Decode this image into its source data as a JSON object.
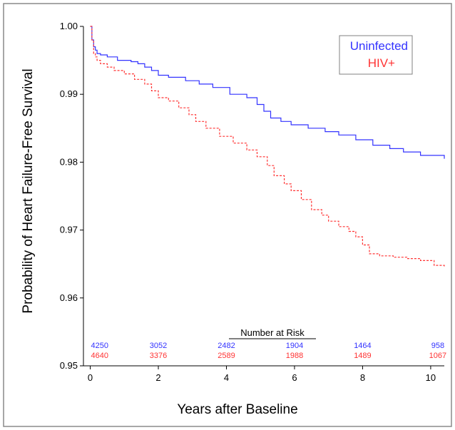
{
  "chart_data": {
    "type": "line",
    "xlabel": "Years after Baseline",
    "ylabel": "Probability of Heart Failure-Free Survival",
    "xlim": [
      -0.2,
      10.4
    ],
    "ylim": [
      0.95,
      1.0
    ],
    "x_ticks": [
      0,
      2,
      4,
      6,
      8,
      10
    ],
    "x_tick_labels": [
      "0",
      "2",
      "4",
      "6",
      "8",
      "10"
    ],
    "y_ticks": [
      0.95,
      0.96,
      0.97,
      0.98,
      0.99,
      1.0
    ],
    "y_tick_labels": [
      "0.95",
      "0.96",
      "0.97",
      "0.98",
      "0.99",
      "1.00"
    ],
    "legend_position": "top-right",
    "series": [
      {
        "name": "Uninfected",
        "color": "#3333ff",
        "dash": "solid",
        "x": [
          0,
          0.05,
          0.1,
          0.15,
          0.2,
          0.3,
          0.5,
          0.8,
          1.2,
          1.4,
          1.6,
          1.8,
          2.0,
          2.3,
          2.8,
          3.2,
          3.6,
          4.1,
          4.6,
          4.9,
          5.1,
          5.3,
          5.6,
          5.9,
          6.1,
          6.4,
          6.9,
          7.3,
          7.8,
          8.3,
          8.8,
          9.2,
          9.7,
          10.4
        ],
        "y": [
          1.0,
          0.998,
          0.997,
          0.9965,
          0.996,
          0.9958,
          0.9955,
          0.995,
          0.9948,
          0.9945,
          0.994,
          0.9935,
          0.9928,
          0.9925,
          0.992,
          0.9915,
          0.991,
          0.99,
          0.9895,
          0.9885,
          0.9875,
          0.9865,
          0.986,
          0.9855,
          0.9855,
          0.985,
          0.9845,
          0.984,
          0.9833,
          0.9825,
          0.982,
          0.9815,
          0.981,
          0.9805
        ]
      },
      {
        "name": "HIV+",
        "color": "#ff3333",
        "dash": "dashed",
        "x": [
          0,
          0.05,
          0.1,
          0.15,
          0.2,
          0.3,
          0.5,
          0.7,
          1.0,
          1.3,
          1.6,
          1.8,
          2.0,
          2.3,
          2.6,
          2.9,
          3.1,
          3.4,
          3.8,
          4.2,
          4.6,
          4.9,
          5.2,
          5.4,
          5.7,
          5.9,
          6.2,
          6.5,
          6.8,
          7.0,
          7.3,
          7.6,
          7.8,
          8.0,
          8.2,
          8.5,
          8.9,
          9.3,
          9.7,
          10.1,
          10.4
        ],
        "y": [
          1.0,
          0.998,
          0.996,
          0.9955,
          0.995,
          0.9945,
          0.994,
          0.9935,
          0.993,
          0.9922,
          0.9915,
          0.9905,
          0.9895,
          0.989,
          0.988,
          0.987,
          0.986,
          0.985,
          0.9838,
          0.9828,
          0.9818,
          0.9808,
          0.9795,
          0.978,
          0.9768,
          0.9758,
          0.9745,
          0.973,
          0.9722,
          0.9713,
          0.9705,
          0.9698,
          0.969,
          0.9678,
          0.9665,
          0.9662,
          0.966,
          0.9658,
          0.9655,
          0.9648,
          0.9645
        ]
      }
    ],
    "risk_table": {
      "title": "Number at Risk",
      "x": [
        0,
        2,
        4,
        6,
        8,
        10
      ],
      "rows": [
        {
          "name": "Uninfected",
          "color": "#3333ff",
          "values": [
            "4250",
            "3052",
            "2482",
            "1904",
            "1464",
            "958"
          ]
        },
        {
          "name": "HIV+",
          "color": "#ff3333",
          "values": [
            "4640",
            "3376",
            "2589",
            "1988",
            "1489",
            "1067"
          ]
        }
      ]
    }
  }
}
